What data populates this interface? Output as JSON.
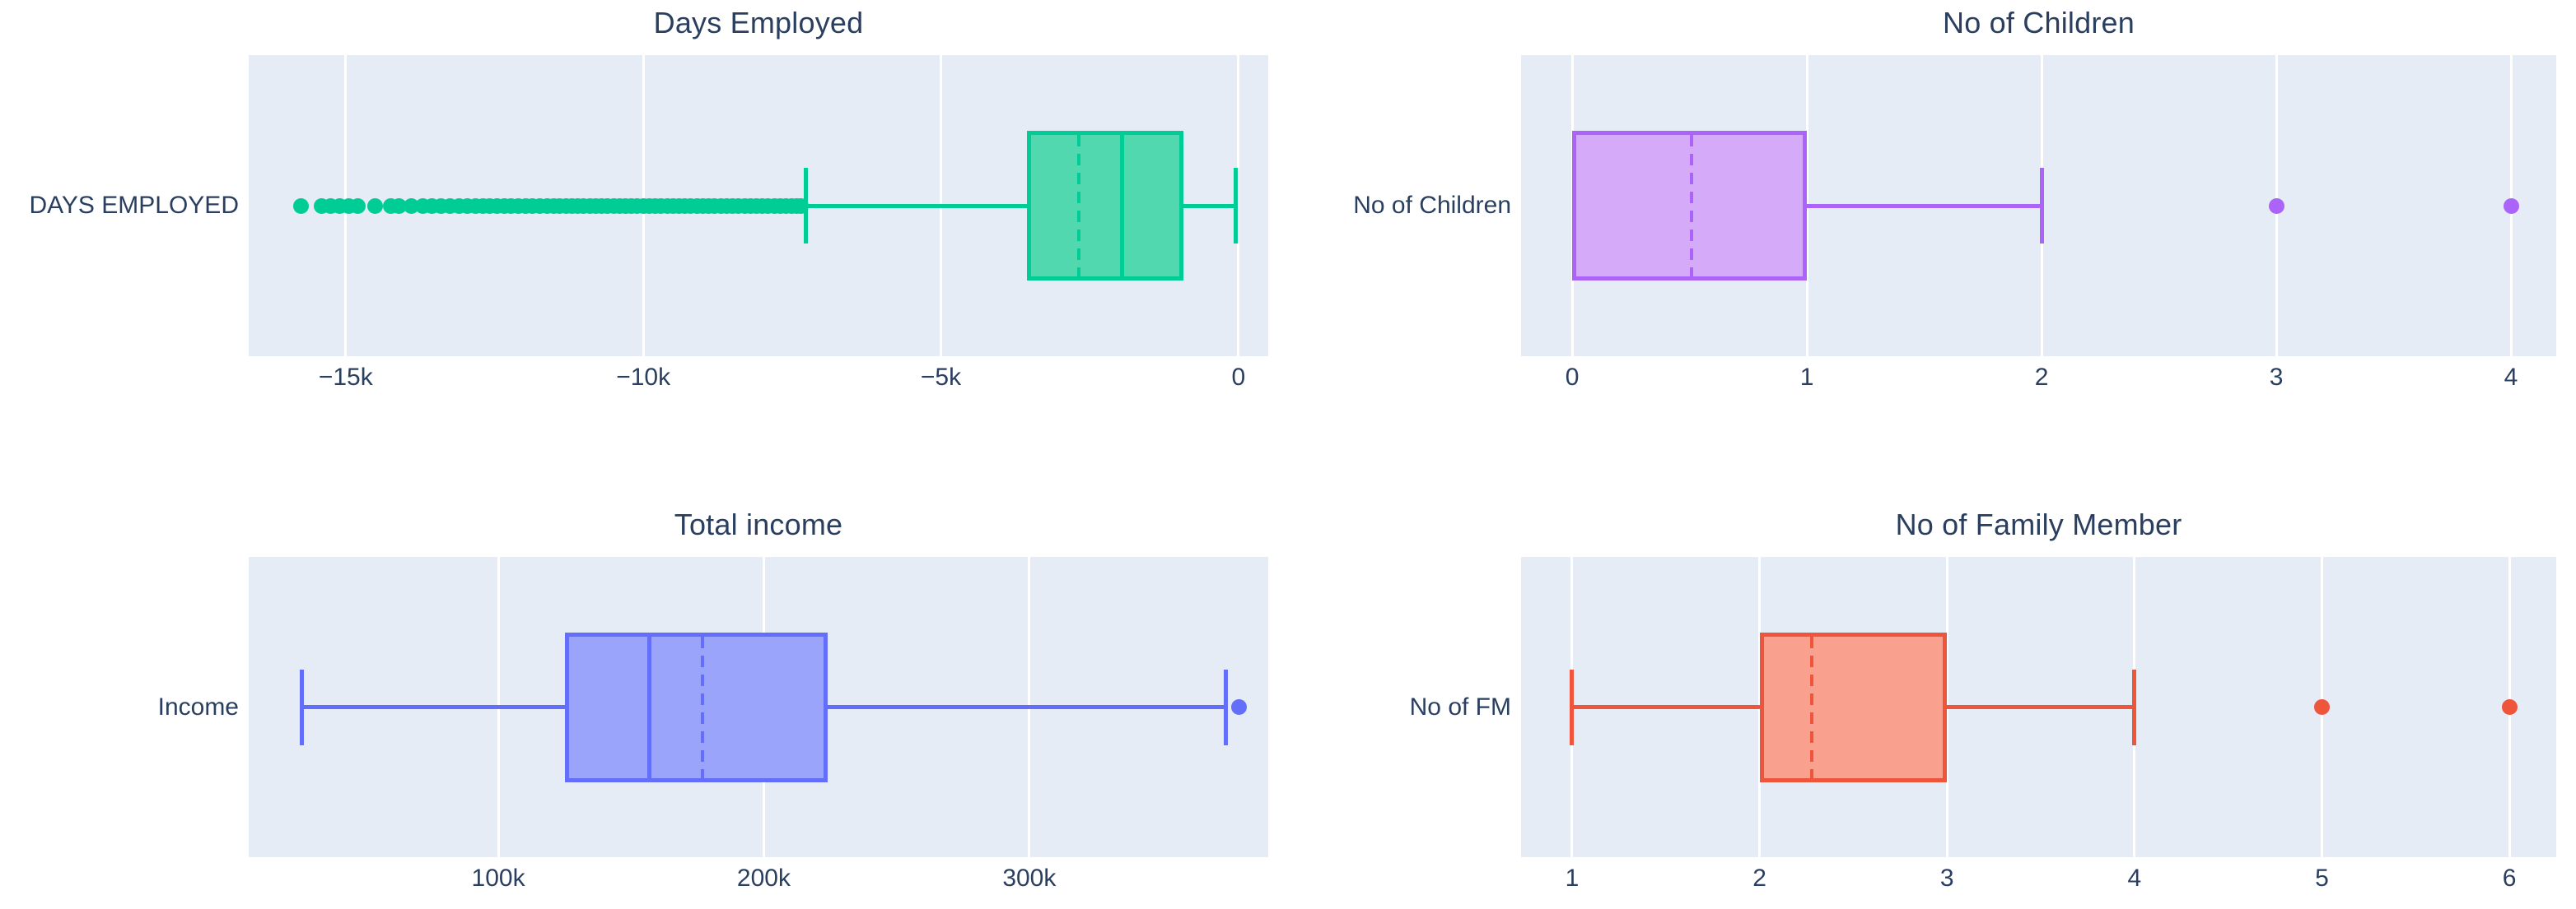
{
  "style": {
    "paper_bg": "#ffffff",
    "plot_bg": "#e5ecf6",
    "grid_color": "#ffffff",
    "text_color": "#2a3f5f"
  },
  "chart_data": [
    {
      "type": "box",
      "orientation": "horizontal",
      "title": "Days Employed",
      "trace_label": "DAYS EMPLOYED",
      "colors": {
        "line": "#00cc96",
        "fill": "#52d8ae"
      },
      "axis": {
        "min": -16630,
        "max": 500,
        "grid": true,
        "ticks": [
          {
            "v": -15000,
            "label": "−15k"
          },
          {
            "v": -10000,
            "label": "−10k"
          },
          {
            "v": -5000,
            "label": "−5k"
          },
          {
            "v": 0,
            "label": "0"
          }
        ]
      },
      "box": {
        "q1": -3550,
        "median": -1960,
        "q3": -920,
        "mean": -2680,
        "whisker_low": -7270,
        "whisker_high": -50
      },
      "outliers": [
        -15750,
        -15400,
        -15250,
        -15100,
        -14950,
        -14800,
        -14500,
        -14250,
        -14100,
        -13900,
        -13700,
        -13550,
        -13400,
        -13250,
        -13100,
        -12950,
        -12820,
        -12700,
        -12580,
        -12460,
        -12340,
        -12220,
        -12100,
        -11980,
        -11860,
        -11740,
        -11620,
        -11500,
        -11400,
        -11300,
        -11200,
        -11100,
        -11000,
        -10900,
        -10800,
        -10700,
        -10600,
        -10500,
        -10400,
        -10300,
        -10200,
        -10100,
        -10000,
        -9900,
        -9800,
        -9700,
        -9600,
        -9500,
        -9400,
        -9300,
        -9200,
        -9100,
        -9000,
        -8900,
        -8800,
        -8700,
        -8600,
        -8500,
        -8400,
        -8300,
        -8200,
        -8100,
        -8000,
        -7900,
        -7800,
        -7700,
        -7600,
        -7500,
        -7420,
        -7350
      ]
    },
    {
      "type": "box",
      "orientation": "horizontal",
      "title": "No of Children",
      "trace_label": "No of Children",
      "colors": {
        "line": "#ab63fa",
        "fill": "#d5aaf8"
      },
      "axis": {
        "min": -0.218,
        "max": 4.193,
        "grid": true,
        "ticks": [
          {
            "v": 0,
            "label": "0"
          },
          {
            "v": 1,
            "label": "1"
          },
          {
            "v": 2,
            "label": "2"
          },
          {
            "v": 3,
            "label": "3"
          },
          {
            "v": 4,
            "label": "4"
          }
        ]
      },
      "box": {
        "q1": 0,
        "median": 0,
        "q3": 1,
        "mean": 0.51,
        "whisker_low": 0,
        "whisker_high": 2
      },
      "outliers": [
        3,
        4
      ]
    },
    {
      "type": "box",
      "orientation": "horizontal",
      "title": "Total income",
      "trace_label": "Income",
      "colors": {
        "line": "#636efa",
        "fill": "#9aa4fa"
      },
      "axis": {
        "min": 6000,
        "max": 390000,
        "grid": true,
        "ticks": [
          {
            "v": 100000,
            "label": "100k"
          },
          {
            "v": 200000,
            "label": "200k"
          },
          {
            "v": 300000,
            "label": "300k"
          }
        ]
      },
      "box": {
        "q1": 125000,
        "median": 157000,
        "q3": 224000,
        "mean": 177000,
        "whisker_low": 26000,
        "whisker_high": 374000
      },
      "outliers": [
        379000
      ]
    },
    {
      "type": "box",
      "orientation": "horizontal",
      "title": "No of Family Member",
      "trace_label": "No of FM",
      "colors": {
        "line": "#ef553b",
        "fill": "#f9a08f"
      },
      "axis": {
        "min": 0.728,
        "max": 6.25,
        "grid": true,
        "ticks": [
          {
            "v": 1,
            "label": "1"
          },
          {
            "v": 2,
            "label": "2"
          },
          {
            "v": 3,
            "label": "3"
          },
          {
            "v": 4,
            "label": "4"
          },
          {
            "v": 5,
            "label": "5"
          },
          {
            "v": 6,
            "label": "6"
          }
        ]
      },
      "box": {
        "q1": 2,
        "median": 2,
        "q3": 3,
        "mean": 2.28,
        "whisker_low": 1,
        "whisker_high": 4
      },
      "outliers": [
        5,
        6
      ]
    }
  ]
}
